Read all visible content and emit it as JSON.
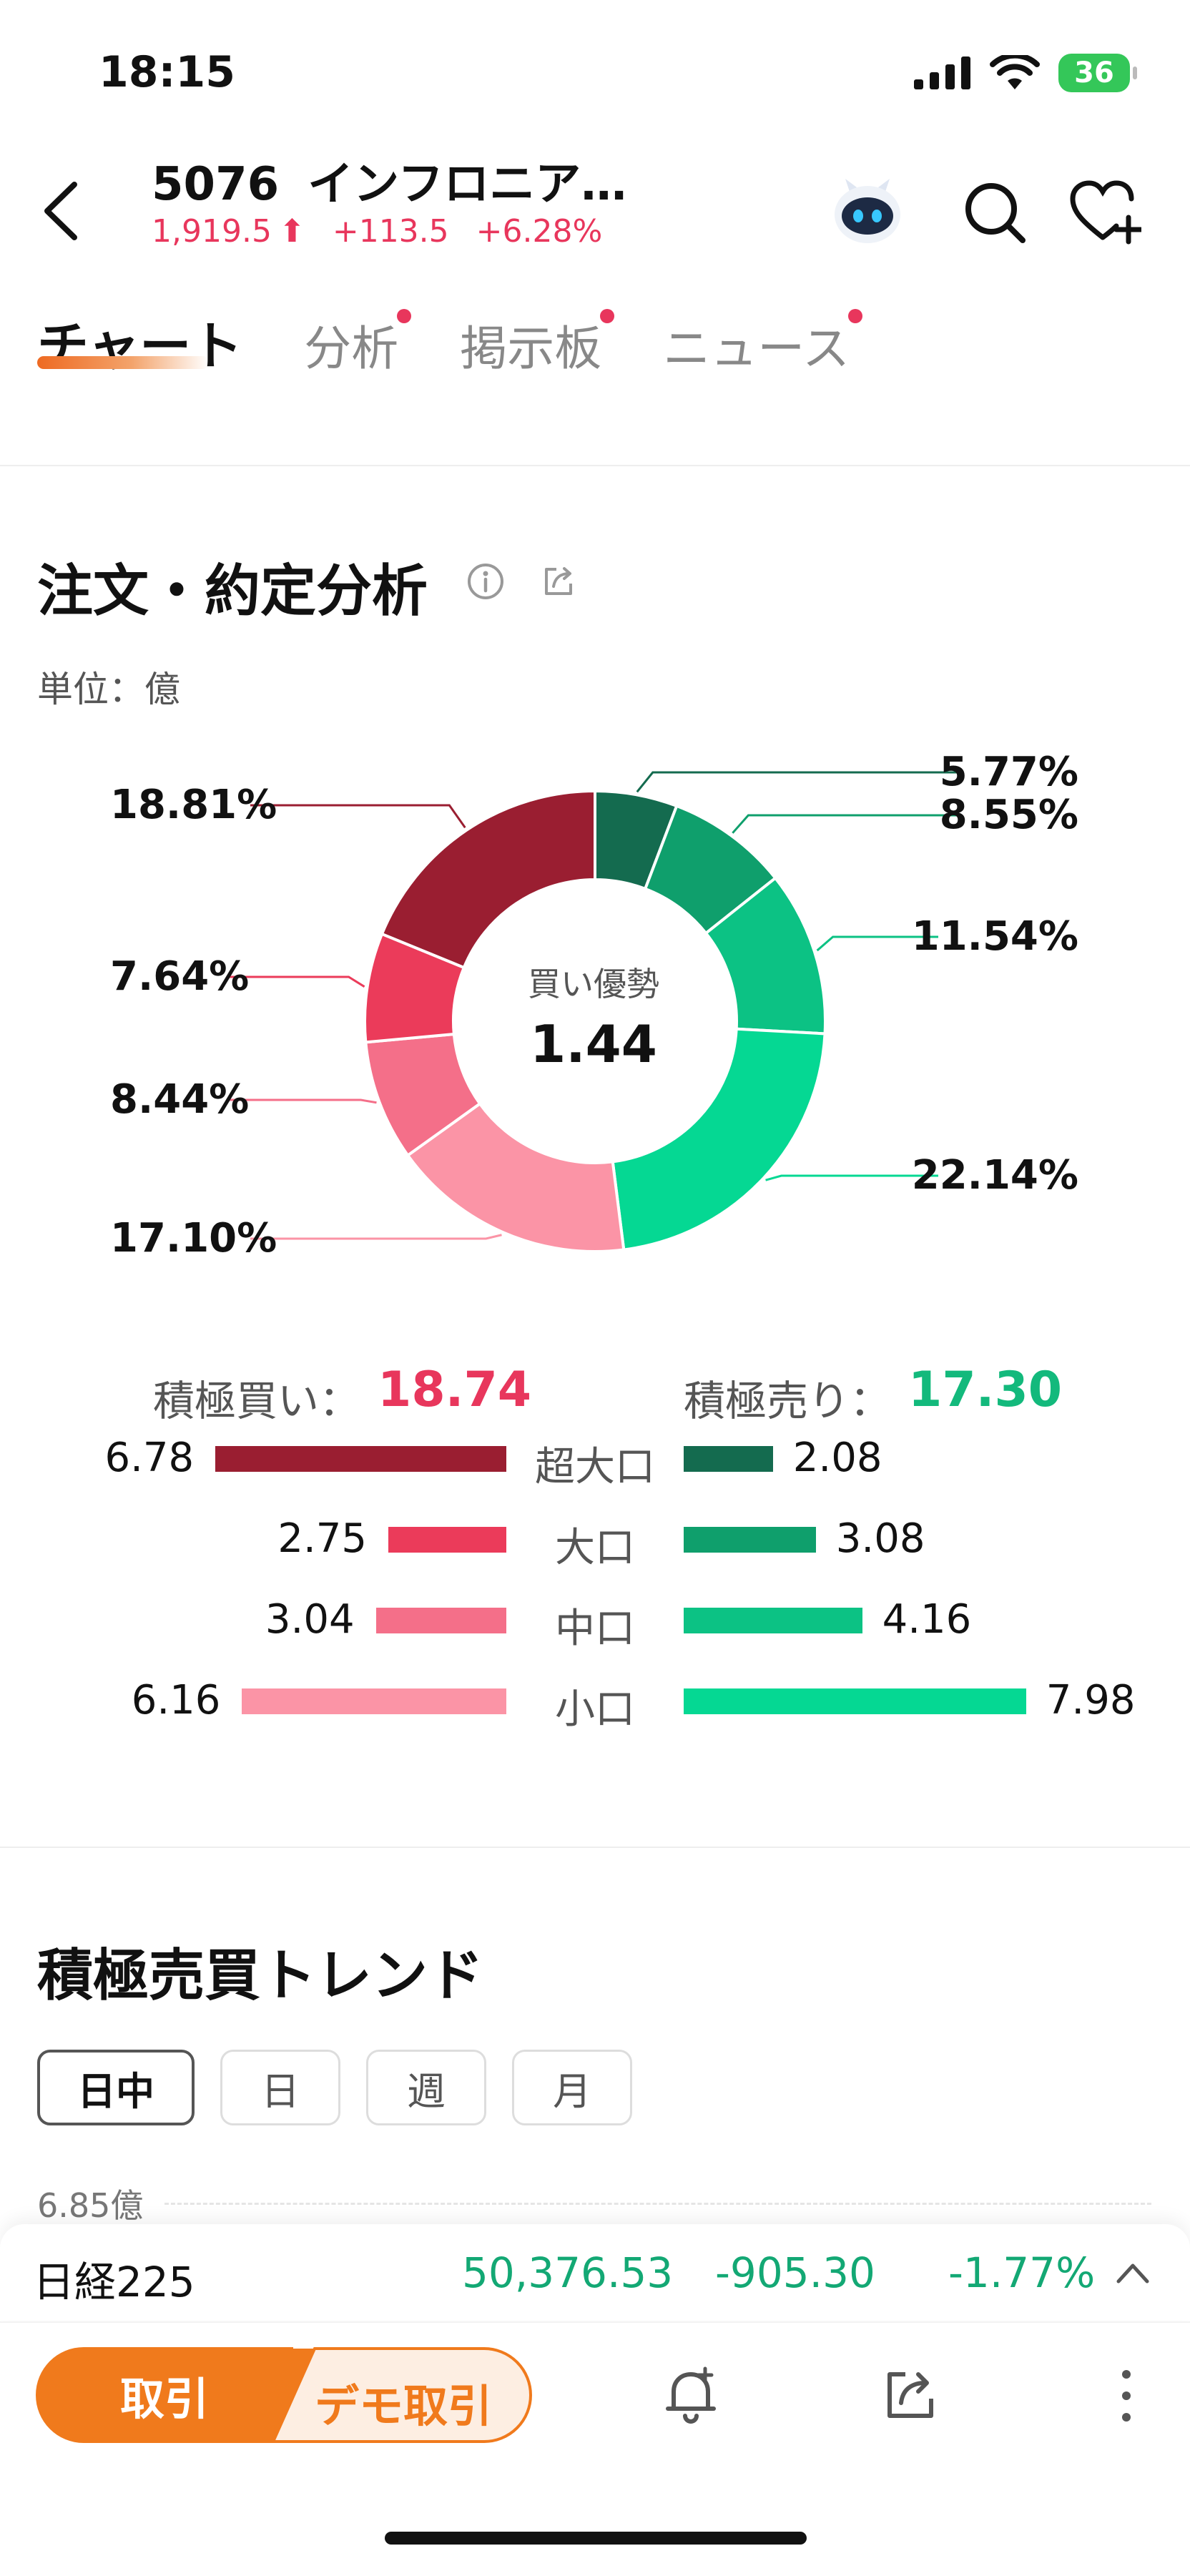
{
  "status_bar": {
    "time": "18:15",
    "battery": "36"
  },
  "header": {
    "code": "5076",
    "name": "インフロニア…",
    "price": "1,919.5",
    "change": "+113.5",
    "change_pct": "+6.28%"
  },
  "tabs": [
    {
      "label": "チャート",
      "active": true,
      "dot": false
    },
    {
      "label": "分析",
      "active": false,
      "dot": true
    },
    {
      "label": "掲示板",
      "active": false,
      "dot": true
    },
    {
      "label": "ニュース",
      "active": false,
      "dot": true
    }
  ],
  "order_analysis": {
    "title": "注文・約定分析",
    "unit": "単位：億",
    "center_label": "買い優勢",
    "center_value": "1.44",
    "buy_label": "積極買い：",
    "buy_total": "18.74",
    "sell_label": "積極売り：",
    "sell_total": "17.30",
    "rows": [
      {
        "category": "超大口",
        "buy": "6.78",
        "sell": "2.08"
      },
      {
        "category": "大口",
        "buy": "2.75",
        "sell": "3.08"
      },
      {
        "category": "中口",
        "buy": "3.04",
        "sell": "4.16"
      },
      {
        "category": "小口",
        "buy": "6.16",
        "sell": "7.98"
      }
    ]
  },
  "chart_data": [
    {
      "type": "pie",
      "donut": true,
      "center_text": [
        "買い優勢",
        "1.44"
      ],
      "slices": [
        {
          "label": "5.77%",
          "value": 5.77,
          "color": "#146b4f"
        },
        {
          "label": "8.55%",
          "value": 8.55,
          "color": "#0f9f6c"
        },
        {
          "label": "11.54%",
          "value": 11.54,
          "color": "#0cc284"
        },
        {
          "label": "22.14%",
          "value": 22.14,
          "color": "#05d893"
        },
        {
          "label": "17.10%",
          "value": 17.1,
          "color": "#fb94a6"
        },
        {
          "label": "8.44%",
          "value": 8.44,
          "color": "#f46f89"
        },
        {
          "label": "7.64%",
          "value": 7.64,
          "color": "#eb3b5a"
        },
        {
          "label": "18.81%",
          "value": 18.81,
          "color": "#9a1e31"
        }
      ]
    },
    {
      "type": "bar",
      "orientation": "horizontal-diverging",
      "categories": [
        "超大口",
        "大口",
        "中口",
        "小口"
      ],
      "series": [
        {
          "name": "積極買い",
          "values": [
            6.78,
            2.75,
            3.04,
            6.16
          ],
          "colors": [
            "#9a1e31",
            "#eb3b5a",
            "#f46f89",
            "#fb94a6"
          ]
        },
        {
          "name": "積極売り",
          "values": [
            2.08,
            3.08,
            4.16,
            7.98
          ],
          "colors": [
            "#146b4f",
            "#0f9f6c",
            "#0cc284",
            "#05d893"
          ]
        }
      ]
    }
  ],
  "trend": {
    "title": "積極売買トレンド",
    "segments": [
      {
        "label": "日中",
        "active": true
      },
      {
        "label": "日",
        "active": false
      },
      {
        "label": "週",
        "active": false
      },
      {
        "label": "月",
        "active": false
      }
    ],
    "axis_top": "6.85億"
  },
  "ticker": {
    "name": "日経225",
    "price": "50,376.53",
    "change": "-905.30",
    "change_pct": "-1.77%"
  },
  "actions": {
    "trade": "取引",
    "demo_trade": "デモ取引"
  }
}
